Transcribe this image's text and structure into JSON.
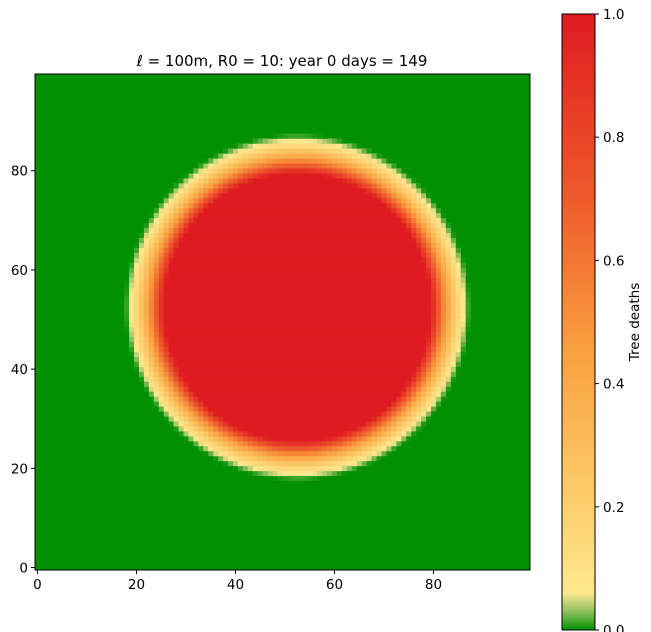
{
  "chart_data": {
    "type": "heatmap",
    "title": "ℓ = 100m,  R0 = 10:  year 0 days = 149",
    "xlim": [
      0,
      99
    ],
    "ylim": [
      0,
      99
    ],
    "x_ticks": [
      "0",
      "20",
      "40",
      "60",
      "80"
    ],
    "x_tick_values": [
      0,
      20,
      40,
      60,
      80
    ],
    "y_ticks": [
      "0",
      "20",
      "40",
      "60",
      "80"
    ],
    "y_tick_values": [
      0,
      20,
      40,
      60,
      80
    ],
    "grid_size": 100,
    "field": {
      "shape": "circular-infection-front",
      "center": [
        52.5,
        52.5
      ],
      "full_death_radius": 27,
      "front_outer_radius": 35,
      "inner_value": 1.0,
      "outer_value": 0.0
    },
    "colorbar": {
      "label": "Tree deaths",
      "range": [
        0.0,
        1.0
      ],
      "ticks": [
        "0.0",
        "0.2",
        "0.4",
        "0.6",
        "0.8",
        "1.0"
      ],
      "tick_values": [
        0.0,
        0.2,
        0.4,
        0.6,
        0.8,
        1.0
      ],
      "colormap": [
        {
          "v": 0.0,
          "color": "#009000"
        },
        {
          "v": 0.03,
          "color": "#8fc060"
        },
        {
          "v": 0.06,
          "color": "#fde890"
        },
        {
          "v": 0.2,
          "color": "#fdcf6e"
        },
        {
          "v": 0.45,
          "color": "#f9a140"
        },
        {
          "v": 0.7,
          "color": "#ef5a2c"
        },
        {
          "v": 1.0,
          "color": "#df1b21"
        }
      ]
    }
  }
}
